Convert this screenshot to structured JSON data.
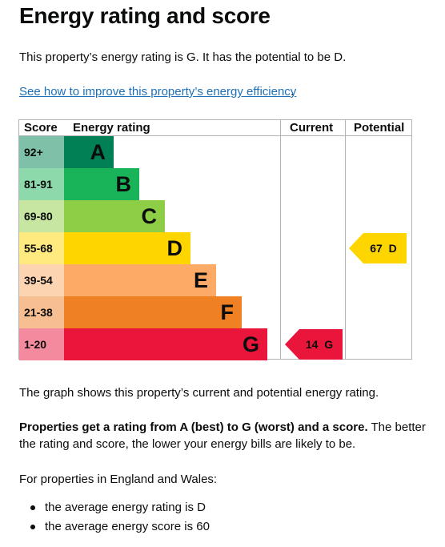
{
  "title": "Energy rating and score",
  "intro": "This property’s energy rating is G. It has the potential to be D.",
  "improve_link": "See how to improve this property’s energy efficiency",
  "improve_link_suffix": ".",
  "table": {
    "headers": {
      "score": "Score",
      "rating": "Energy rating",
      "current": "Current",
      "potential": "Potential"
    }
  },
  "chart_data": {
    "type": "bar",
    "categories": [
      "A",
      "B",
      "C",
      "D",
      "E",
      "F",
      "G"
    ],
    "score_ranges": [
      "92+",
      "81-91",
      "69-80",
      "55-68",
      "39-54",
      "21-38",
      "1-20"
    ],
    "bar_colors": [
      "#008054",
      "#19b459",
      "#8dce46",
      "#ffd500",
      "#fcaa65",
      "#ef8023",
      "#e9153b"
    ],
    "score_colors": [
      "#7fc0a8",
      "#8dd9ab",
      "#c6e6a2",
      "#ffea80",
      "#fdd4b2",
      "#f7bf91",
      "#f48a9d"
    ],
    "current": {
      "score": 14,
      "rating": "G",
      "label": "14  G",
      "color": "#e9153b"
    },
    "potential": {
      "score": 67,
      "rating": "D",
      "label": "67  D",
      "color": "#ffd500"
    }
  },
  "graph_note": "The graph shows this property’s current and potential energy rating.",
  "rating_info": {
    "bold": "Properties get a rating from A (best) to G (worst) and a score.",
    "line1_rest": " The better",
    "line2": "the rating and score, the lower your energy bills are likely to be."
  },
  "region_note": "For properties in England and Wales:",
  "averages": [
    "the average energy rating is D",
    "the average energy score is 60"
  ]
}
